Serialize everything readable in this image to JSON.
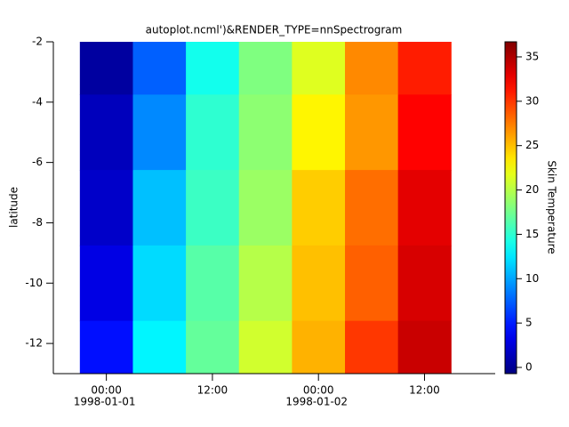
{
  "chart_data": {
    "type": "spectrogram",
    "title": "autoplot.ncml')&RENDER_TYPE=nnSpectrogram",
    "y_label": "latitude",
    "z_label": "Skin Temperature",
    "x": [
      0,
      6,
      12,
      18,
      24,
      30,
      36
    ],
    "y": [
      -2.5,
      -5,
      -7.5,
      -10,
      -12.5
    ],
    "values": [
      [
        0.5,
        7.5,
        14,
        18,
        21.5,
        27,
        31
      ],
      [
        1.5,
        9,
        15,
        18.5,
        23,
        26.5,
        32
      ],
      [
        2,
        11,
        15.5,
        19,
        24.5,
        28,
        33
      ],
      [
        3,
        12,
        16.5,
        20,
        25,
        28.5,
        33.5
      ],
      [
        4.5,
        13,
        17,
        21,
        25.5,
        30,
        34
      ]
    ],
    "colormap": "jet",
    "xlim": [
      -6,
      44
    ],
    "xticks": [
      {
        "value": 0,
        "label": "00:00",
        "date": "1998-01-01"
      },
      {
        "value": 12,
        "label": "12:00"
      },
      {
        "value": 24,
        "label": "00:00",
        "date": "1998-01-02"
      },
      {
        "value": 36,
        "label": "12:00"
      }
    ],
    "ylim": [
      -13,
      -2
    ],
    "yticks": [
      -2,
      -4,
      -6,
      -8,
      -10,
      -12
    ],
    "zlim": [
      -0.7,
      36.7
    ],
    "zticks": [
      0,
      5,
      10,
      15,
      20,
      25,
      30,
      35
    ]
  }
}
